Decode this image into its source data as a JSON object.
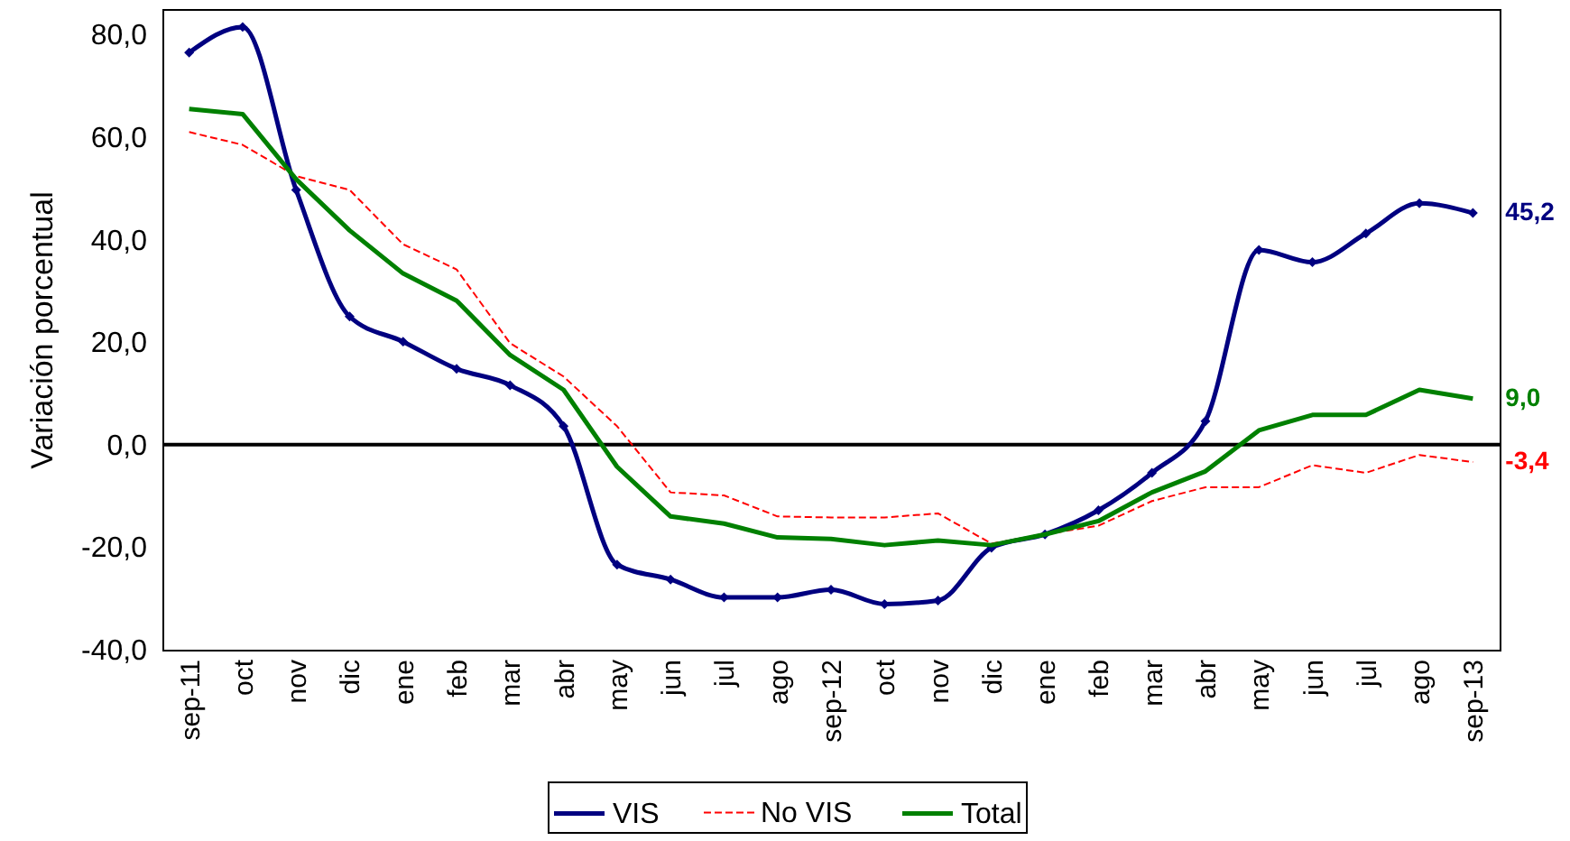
{
  "chart_data": {
    "type": "line",
    "ylabel": "Variación porcentual",
    "categories": [
      "sep-11",
      "oct",
      "nov",
      "dic",
      "ene",
      "feb",
      "mar",
      "abr",
      "may",
      "jun",
      "jul",
      "ago",
      "sep-12",
      "oct",
      "nov",
      "dic",
      "ene",
      "feb",
      "mar",
      "abr",
      "may",
      "jun",
      "jul",
      "ago",
      "sep-13"
    ],
    "series": [
      {
        "name": "VIS",
        "color": "#000080",
        "marker": "diamond",
        "values": [
          76.5,
          81.5,
          49.7,
          25.0,
          20.1,
          14.8,
          11.6,
          3.6,
          -23.4,
          -26.3,
          -29.8,
          -29.8,
          -28.3,
          -31.1,
          -30.4,
          -20.1,
          -17.5,
          -12.8,
          -5.5,
          4.6,
          38.0,
          35.6,
          41.2,
          47.1,
          45.2
        ],
        "value_labels": [
          null,
          null,
          null,
          null,
          null,
          null,
          null,
          null,
          null,
          null,
          null,
          null,
          null,
          null,
          null,
          null,
          null,
          null,
          null,
          null,
          null,
          null,
          null,
          null,
          "45,2"
        ]
      },
      {
        "name": "No VIS",
        "color": "#ff0000",
        "line_style": "dashed",
        "values": [
          61.0,
          58.5,
          52.4,
          49.7,
          39.1,
          34.2,
          19.8,
          13.3,
          3.6,
          -9.3,
          -9.9,
          -14.0,
          -14.2,
          -14.2,
          -13.4,
          -19.3,
          -17.5,
          -15.8,
          -11.0,
          -8.3,
          -8.3,
          -4.0,
          -5.5,
          -2.0,
          -3.4
        ],
        "value_labels": [
          null,
          null,
          null,
          null,
          null,
          null,
          null,
          null,
          null,
          null,
          null,
          null,
          null,
          null,
          null,
          null,
          null,
          null,
          null,
          null,
          null,
          null,
          null,
          null,
          "-3,4"
        ]
      },
      {
        "name": "Total",
        "color": "#008000",
        "values": [
          65.5,
          64.5,
          51.8,
          41.8,
          33.4,
          28.1,
          17.5,
          10.7,
          -4.3,
          -14.0,
          -15.4,
          -18.1,
          -18.4,
          -19.6,
          -18.7,
          -19.6,
          -17.5,
          -14.9,
          -9.3,
          -5.2,
          2.8,
          5.8,
          5.8,
          10.7,
          9.0
        ],
        "value_labels": [
          null,
          null,
          null,
          null,
          null,
          null,
          null,
          null,
          null,
          null,
          null,
          null,
          null,
          null,
          null,
          null,
          null,
          null,
          null,
          null,
          null,
          null,
          null,
          null,
          "9,0"
        ]
      }
    ],
    "ylim": [
      -40,
      85
    ],
    "yticks": [
      {
        "value": -40,
        "label": "-40,0"
      },
      {
        "value": -20,
        "label": "-20,0"
      },
      {
        "value": 0,
        "label": "0,0"
      },
      {
        "value": 20,
        "label": "20,0"
      },
      {
        "value": 40,
        "label": "40,0"
      },
      {
        "value": 60,
        "label": "60,0"
      },
      {
        "value": 80,
        "label": "80,0"
      }
    ],
    "ref_lines": [
      {
        "axis": "y",
        "value": 0,
        "color": "#000000"
      }
    ],
    "legend": "bottom"
  }
}
